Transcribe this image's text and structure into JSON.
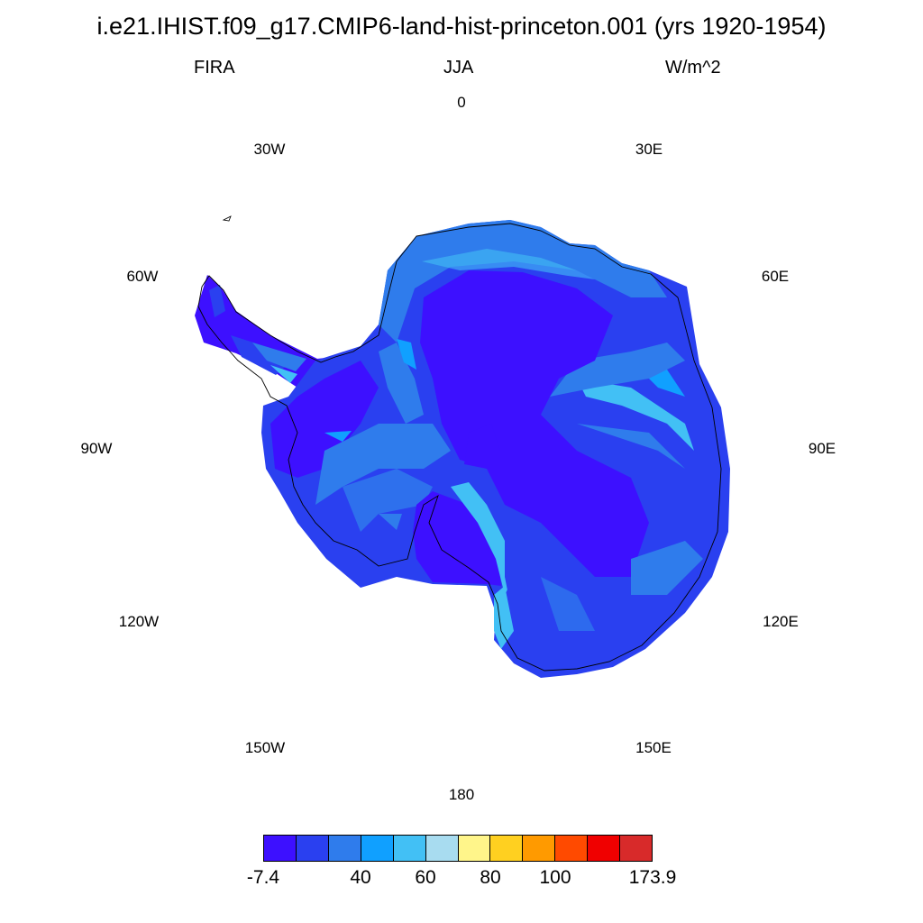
{
  "title": "i.e21.IHIST.f09_g17.CMIP6-land-hist-princeton.001 (yrs 1920-1954)",
  "subtitle": {
    "left": "FIRA",
    "center": "JJA",
    "right": "W/m^2"
  },
  "longitude_labels": {
    "n0": "0",
    "e30": "30E",
    "e60": "60E",
    "e90": "90E",
    "e120": "120E",
    "e150": "150E",
    "s180": "180",
    "w150": "150W",
    "w120": "120W",
    "w90": "90W",
    "w60": "60W",
    "w30": "30W"
  },
  "colorbar": {
    "colors": [
      "#3d10ff",
      "#2a40f0",
      "#2f7cec",
      "#10a0ff",
      "#42c0f5",
      "#a8dcf0",
      "#fff58a",
      "#ffd020",
      "#ff9a00",
      "#ff4a00",
      "#f00000",
      "#d82a2a"
    ],
    "tick_labels": [
      "-7.4",
      "40",
      "60",
      "80",
      "100",
      "173.9"
    ]
  }
}
